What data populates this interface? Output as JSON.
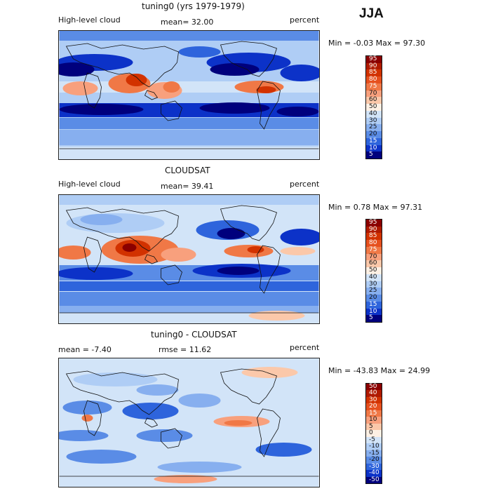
{
  "season": "JJA",
  "panels": [
    {
      "title": "tuning0 (yrs 1979-1979)",
      "left_label": "High-level cloud",
      "center_label": "mean=  32.00",
      "right_label": "percent",
      "minmax": "Min =  -0.03 Max =  97.30",
      "colorbar_labels": [
        "95",
        "90",
        "85",
        "80",
        "75",
        "70",
        "60",
        "50",
        "40",
        "30",
        "25",
        "20",
        "15",
        "10",
        "5"
      ]
    },
    {
      "title": "CLOUDSAT",
      "left_label": "High-level cloud",
      "center_label": "mean=  39.41",
      "right_label": "percent",
      "minmax": "Min =   0.78 Max =  97.31",
      "colorbar_labels": [
        "95",
        "90",
        "85",
        "80",
        "75",
        "70",
        "60",
        "50",
        "40",
        "30",
        "25",
        "20",
        "15",
        "10",
        "5"
      ]
    },
    {
      "title": "tuning0 - CLOUDSAT",
      "left_label": "mean =  -7.40",
      "center_label": "rmse =  11.62",
      "right_label": "percent",
      "minmax": "Min = -43.83 Max =  24.99",
      "colorbar_labels": [
        "50",
        "40",
        "30",
        "20",
        "15",
        "10",
        "5",
        "0",
        "-5",
        "-10",
        "-15",
        "-20",
        "-30",
        "-40",
        "-50"
      ]
    }
  ],
  "colors": {
    "cloud_scale": [
      "#8b0000",
      "#b01a00",
      "#d23200",
      "#e6501e",
      "#f07846",
      "#f8a07d",
      "#fbc8aa",
      "#fdf0e4",
      "#d2e4f8",
      "#afcdf5",
      "#87afef",
      "#5a8ce6",
      "#2e64dc",
      "#0c32c8",
      "#00007d"
    ],
    "diff_scale": [
      "#8b0000",
      "#b01a00",
      "#d23200",
      "#e6501e",
      "#f07846",
      "#f8a07d",
      "#fbc8aa",
      "#fdf0e4",
      "#d2e4f8",
      "#afcdf5",
      "#87afef",
      "#5a8ce6",
      "#2e64dc",
      "#0c32c8",
      "#00007d"
    ]
  }
}
